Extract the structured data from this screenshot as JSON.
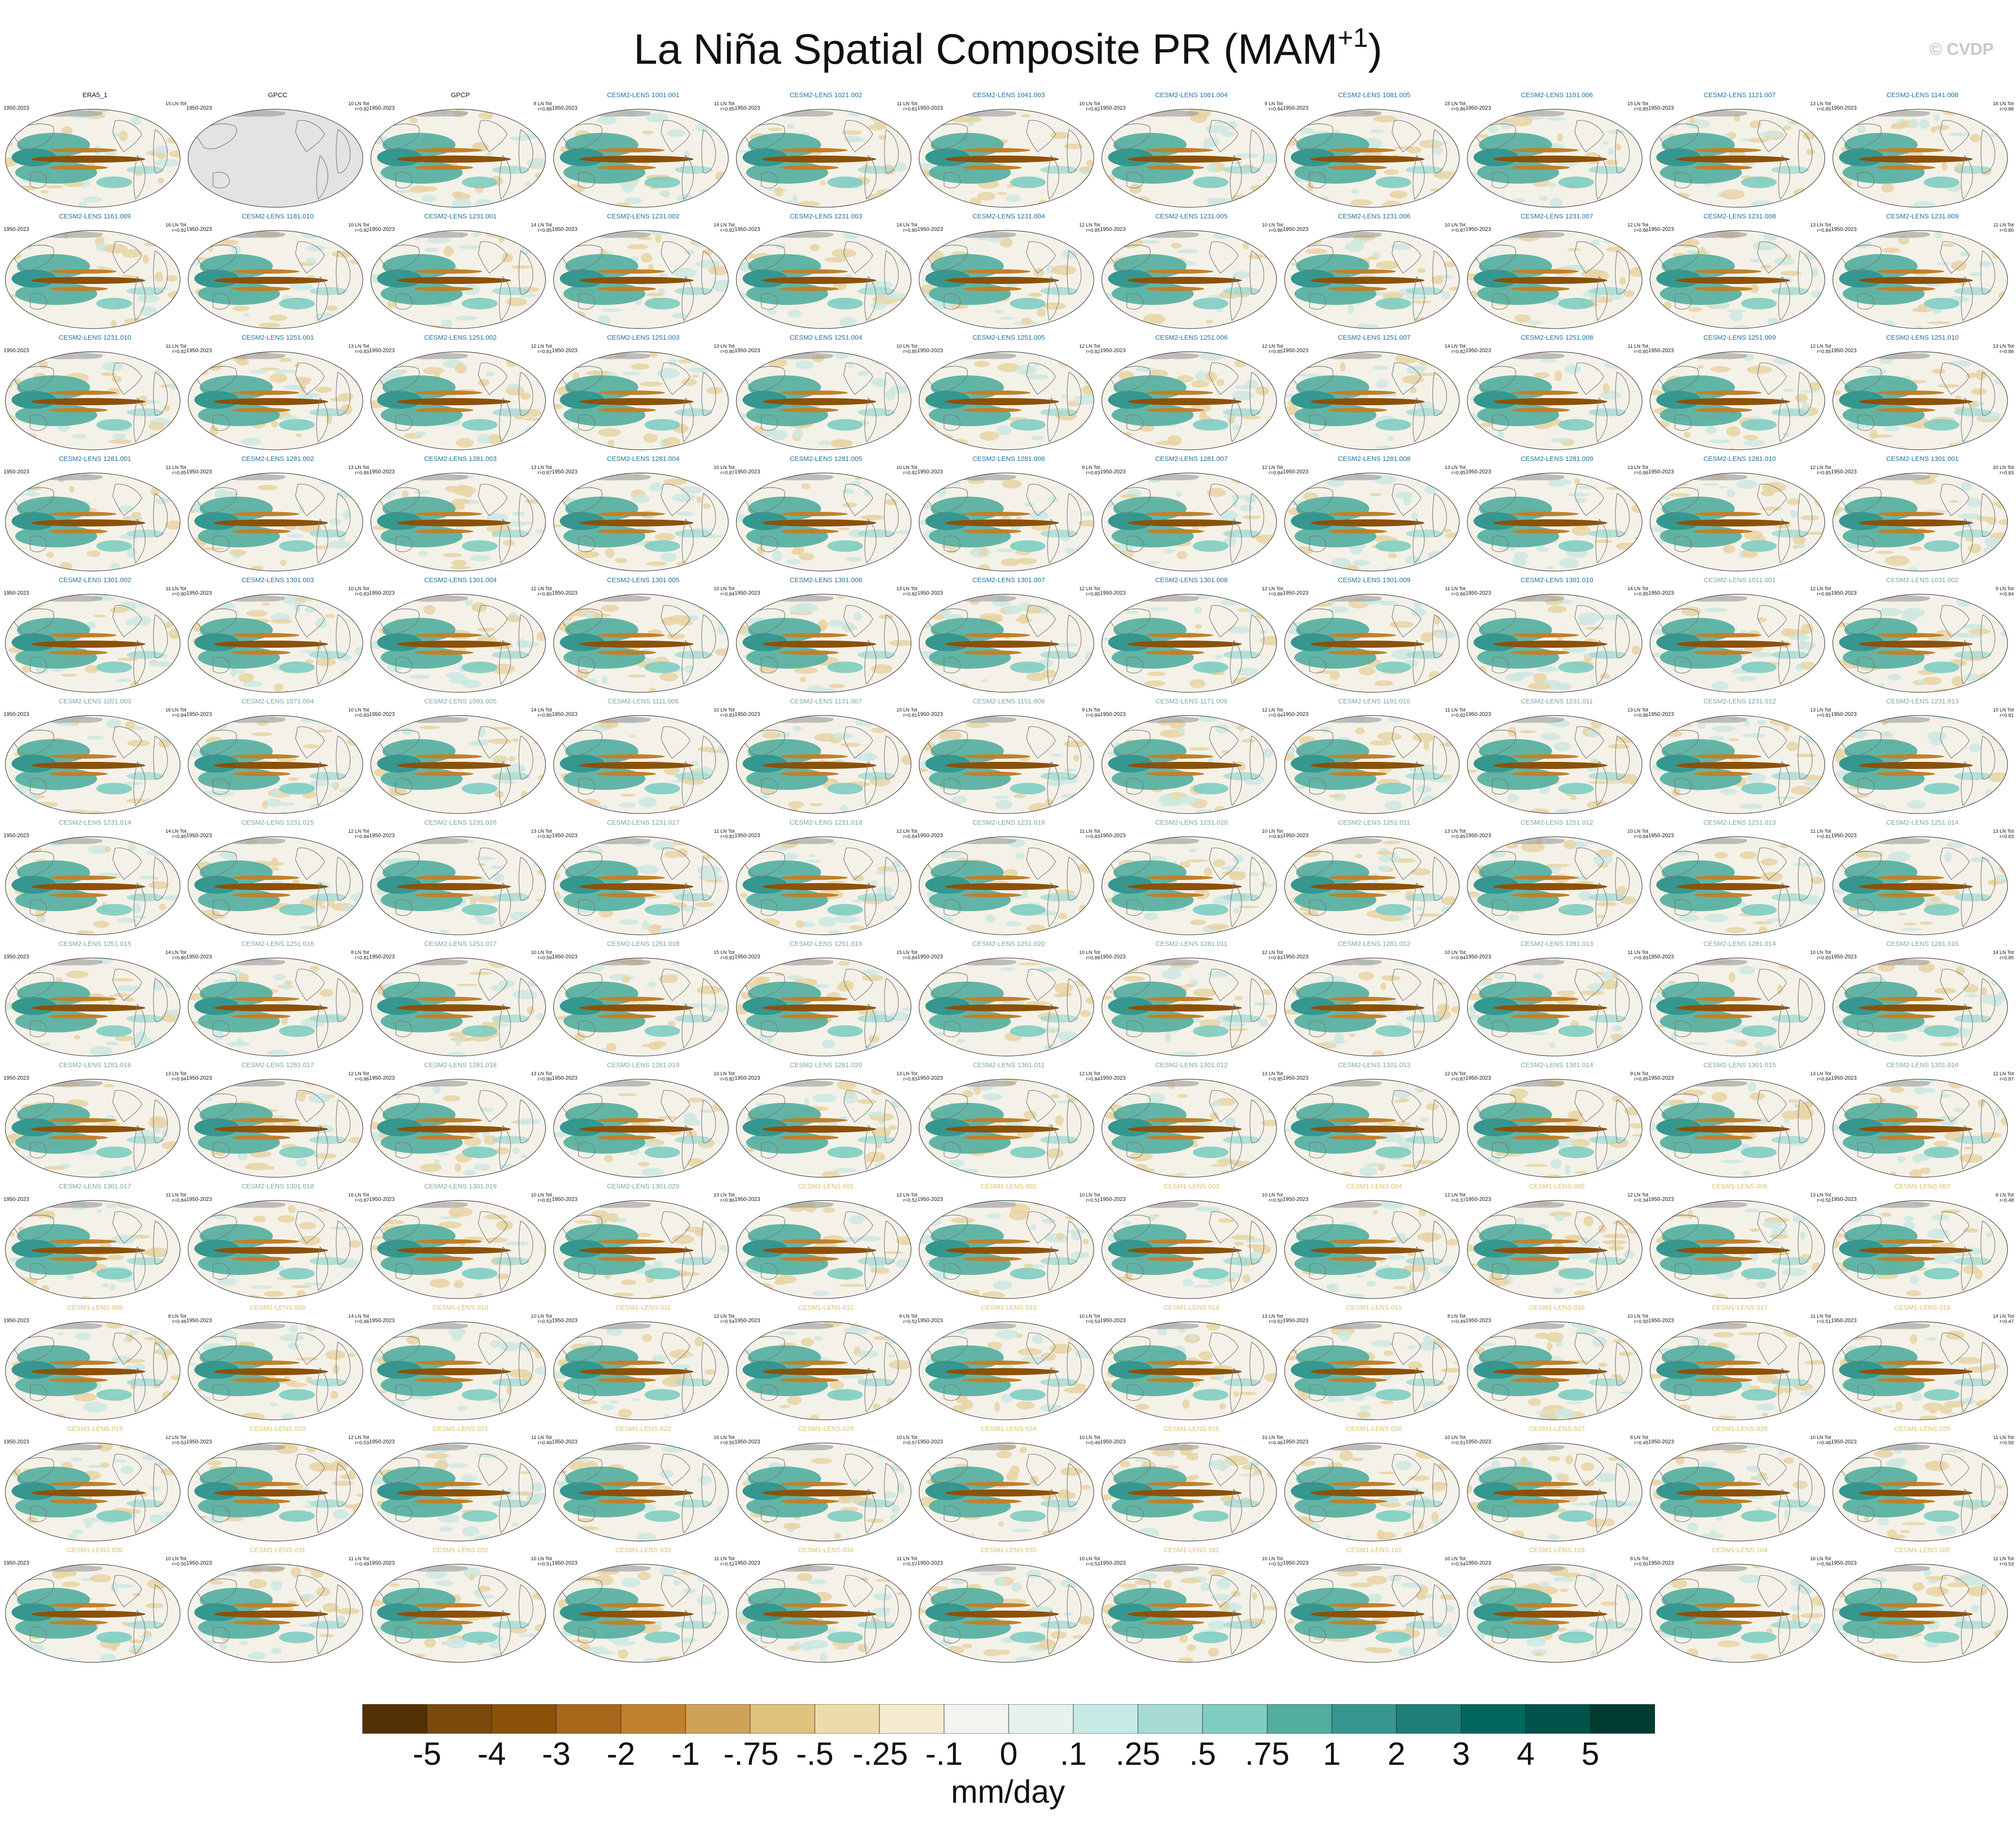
{
  "title": {
    "text": "La Niña Spatial Composite PR (MAM",
    "sup": "+1",
    "close": ")"
  },
  "watermark": "© CVDP",
  "period": "1950-2023",
  "colors": {
    "cesm2_smbb": "#1f6f9f",
    "cesm2_cmip6": "#7aa89a",
    "cesm1": "#d8c06a",
    "obs": "#111111"
  },
  "panels": [
    {
      "name": "ERA5_1",
      "group": "obs",
      "events": "15 LN Tot",
      "r": ""
    },
    {
      "name": "GPCC",
      "group": "obs",
      "events": "10 LN Tot",
      "r": "r=0.82"
    },
    {
      "name": "GPCP",
      "group": "obs",
      "events": "8 LN Tot",
      "r": "r=0.88"
    },
    {
      "name": "CESM2-LENS 1001.001",
      "group": "cesm2_smbb",
      "events": "11 LN Tot",
      "r": "r=0.85"
    },
    {
      "name": "CESM2-LENS 1021.002",
      "group": "cesm2_smbb",
      "events": "11 LN Tot",
      "r": "r=0.81"
    },
    {
      "name": "CESM2-LENS 1041.003",
      "group": "cesm2_smbb",
      "events": "10 LN Tot",
      "r": "r=0.82"
    },
    {
      "name": "CESM2-LENS 1061.004",
      "group": "cesm2_smbb",
      "events": "9 LN Tot",
      "r": "r=0.84"
    },
    {
      "name": "CESM2-LENS 1081.005",
      "group": "cesm2_smbb",
      "events": "15 LN Tot",
      "r": "r=0.86"
    },
    {
      "name": "CESM2-LENS 1101.006",
      "group": "cesm2_smbb",
      "events": "15 LN Tot",
      "r": "r=0.85"
    },
    {
      "name": "CESM2-LENS 1121.007",
      "group": "cesm2_smbb",
      "events": "13 LN Tot",
      "r": "r=0.85"
    },
    {
      "name": "CESM2-LENS 1141.008",
      "group": "cesm2_smbb",
      "events": "16 LN Tot",
      "r": "r=0.86"
    },
    {
      "name": "CESM2-LENS 1161.009",
      "group": "cesm2_smbb",
      "events": "16 LN Tot",
      "r": "r=0.82"
    },
    {
      "name": "CESM2-LENS 1181.010",
      "group": "cesm2_smbb",
      "events": "10 LN Tot",
      "r": "r=0.82"
    },
    {
      "name": "CESM2-LENS 1231.001",
      "group": "cesm2_smbb",
      "events": "14 LN Tot",
      "r": "r=0.85"
    },
    {
      "name": "CESM2-LENS 1231.002",
      "group": "cesm2_smbb",
      "events": "14 LN Tot",
      "r": "r=0.82"
    },
    {
      "name": "CESM2-LENS 1231.003",
      "group": "cesm2_smbb",
      "events": "14 LN Tot",
      "r": "r=0.80"
    },
    {
      "name": "CESM2-LENS 1231.004",
      "group": "cesm2_smbb",
      "events": "12 LN Tot",
      "r": "r=0.85"
    },
    {
      "name": "CESM2-LENS 1231.005",
      "group": "cesm2_smbb",
      "events": "10 LN Tot",
      "r": "r=0.86"
    },
    {
      "name": "CESM2-LENS 1231.006",
      "group": "cesm2_smbb",
      "events": "10 LN Tot",
      "r": "r=0.87"
    },
    {
      "name": "CESM2-LENS 1231.007",
      "group": "cesm2_smbb",
      "events": "12 LN Tot",
      "r": "r=0.86"
    },
    {
      "name": "CESM2-LENS 1231.008",
      "group": "cesm2_smbb",
      "events": "13 LN Tot",
      "r": "r=0.84"
    },
    {
      "name": "CESM2-LENS 1231.009",
      "group": "cesm2_smbb",
      "events": "11 LN Tot",
      "r": "r=0.80"
    },
    {
      "name": "CESM2-LENS 1231.010",
      "group": "cesm2_smbb",
      "events": "11 LN Tot",
      "r": "r=0.82"
    },
    {
      "name": "CESM2-LENS 1251.001",
      "group": "cesm2_smbb",
      "events": "13 LN Tot",
      "r": "r=0.83"
    },
    {
      "name": "CESM2-LENS 1251.002",
      "group": "cesm2_smbb",
      "events": "12 LN Tot",
      "r": "r=0.81"
    },
    {
      "name": "CESM2-LENS 1251.003",
      "group": "cesm2_smbb",
      "events": "13 LN Tot",
      "r": "r=0.80"
    },
    {
      "name": "CESM2-LENS 1251.004",
      "group": "cesm2_smbb",
      "events": "10 LN Tot",
      "r": "r=0.85"
    },
    {
      "name": "CESM2-LENS 1251.005",
      "group": "cesm2_smbb",
      "events": "12 LN Tot",
      "r": "r=0.82"
    },
    {
      "name": "CESM2-LENS 1251.006",
      "group": "cesm2_smbb",
      "events": "12 LN Tot",
      "r": "r=0.85"
    },
    {
      "name": "CESM2-LENS 1251.007",
      "group": "cesm2_smbb",
      "events": "14 LN Tot",
      "r": "r=0.82"
    },
    {
      "name": "CESM2-LENS 1251.008",
      "group": "cesm2_smbb",
      "events": "11 LN Tot",
      "r": "r=0.80"
    },
    {
      "name": "CESM2-LENS 1251.009",
      "group": "cesm2_smbb",
      "events": "12 LN Tot",
      "r": "r=0.85"
    },
    {
      "name": "CESM2-LENS 1251.010",
      "group": "cesm2_smbb",
      "events": "13 LN Tot",
      "r": "r=0.86"
    },
    {
      "name": "CESM2-LENS 1281.001",
      "group": "cesm2_smbb",
      "events": "11 LN Tot",
      "r": "r=0.85"
    },
    {
      "name": "CESM2-LENS 1281.002",
      "group": "cesm2_smbb",
      "events": "13 LN Tot",
      "r": "r=0.86"
    },
    {
      "name": "CESM2-LENS 1281.003",
      "group": "cesm2_smbb",
      "events": "13 LN Tot",
      "r": "r=0.87"
    },
    {
      "name": "CESM2-LENS 1281.004",
      "group": "cesm2_smbb",
      "events": "10 LN Tot",
      "r": "r=0.87"
    },
    {
      "name": "CESM2-LENS 1281.005",
      "group": "cesm2_smbb",
      "events": "10 LN Tot",
      "r": "r=0.82"
    },
    {
      "name": "CESM2-LENS 1281.006",
      "group": "cesm2_smbb",
      "events": "9 LN Tot",
      "r": "r=0.83"
    },
    {
      "name": "CESM2-LENS 1281.007",
      "group": "cesm2_smbb",
      "events": "12 LN Tot",
      "r": "r=0.84"
    },
    {
      "name": "CESM2-LENS 1281.008",
      "group": "cesm2_smbb",
      "events": "13 LN Tot",
      "r": "r=0.85"
    },
    {
      "name": "CESM2-LENS 1281.009",
      "group": "cesm2_smbb",
      "events": "13 LN Tot",
      "r": "r=0.86"
    },
    {
      "name": "CESM2-LENS 1281.010",
      "group": "cesm2_smbb",
      "events": "12 LN Tot",
      "r": "r=0.85"
    },
    {
      "name": "CESM2-LENS 1301.001",
      "group": "cesm2_smbb",
      "events": "10 LN Tot",
      "r": "r=0.83"
    },
    {
      "name": "CESM2-LENS 1301.002",
      "group": "cesm2_smbb",
      "events": "11 LN Tot",
      "r": "r=0.80"
    },
    {
      "name": "CESM2-LENS 1301.003",
      "group": "cesm2_smbb",
      "events": "10 LN Tot",
      "r": "r=0.83"
    },
    {
      "name": "CESM2-LENS 1301.004",
      "group": "cesm2_smbb",
      "events": "12 LN Tot",
      "r": "r=0.80"
    },
    {
      "name": "CESM2-LENS 1301.005",
      "group": "cesm2_smbb",
      "events": "10 LN Tot",
      "r": "r=0.84"
    },
    {
      "name": "CESM2-LENS 1301.006",
      "group": "cesm2_smbb",
      "events": "13 LN Tot",
      "r": "r=0.82"
    },
    {
      "name": "CESM2-LENS 1301.007",
      "group": "cesm2_smbb",
      "events": "12 LN Tot",
      "r": "r=0.85"
    },
    {
      "name": "CESM2-LENS 1301.008",
      "group": "cesm2_smbb",
      "events": "12 LN Tot",
      "r": "r=0.86"
    },
    {
      "name": "CESM2-LENS 1301.009",
      "group": "cesm2_smbb",
      "events": "11 LN Tot",
      "r": "r=0.86"
    },
    {
      "name": "CESM2-LENS 1301.010",
      "group": "cesm2_smbb",
      "events": "14 LN Tot",
      "r": "r=0.85"
    },
    {
      "name": "CESM2-LENS 1011.001",
      "group": "cesm2_cmip6",
      "events": "12 LN Tot",
      "r": "r=0.86"
    },
    {
      "name": "CESM2-LENS 1031.002",
      "group": "cesm2_cmip6",
      "events": "9 LN Tot",
      "r": "r=0.84"
    },
    {
      "name": "CESM2-LENS 1051.003",
      "group": "cesm2_cmip6",
      "events": "16 LN Tot",
      "r": "r=0.84"
    },
    {
      "name": "CESM2-LENS 1071.004",
      "group": "cesm2_cmip6",
      "events": "10 LN Tot",
      "r": "r=0.83"
    },
    {
      "name": "CESM2-LENS 1091.005",
      "group": "cesm2_cmip6",
      "events": "14 LN Tot",
      "r": "r=0.85"
    },
    {
      "name": "CESM2-LENS 1111.006",
      "group": "cesm2_cmip6",
      "events": "10 LN Tot",
      "r": "r=0.83"
    },
    {
      "name": "CESM2-LENS 1131.007",
      "group": "cesm2_cmip6",
      "events": "15 LN Tot",
      "r": "r=0.81"
    },
    {
      "name": "CESM2-LENS 1151.008",
      "group": "cesm2_cmip6",
      "events": "9 LN Tot",
      "r": "r=0.84"
    },
    {
      "name": "CESM2-LENS 1171.009",
      "group": "cesm2_cmip6",
      "events": "12 LN Tot",
      "r": "r=0.84"
    },
    {
      "name": "CESM2-LENS 1191.010",
      "group": "cesm2_cmip6",
      "events": "11 LN Tot",
      "r": "r=0.82"
    },
    {
      "name": "CESM2-LENS 1231.011",
      "group": "cesm2_cmip6",
      "events": "13 LN Tot",
      "r": "r=0.86"
    },
    {
      "name": "CESM2-LENS 1231.012",
      "group": "cesm2_cmip6",
      "events": "13 LN Tot",
      "r": "r=0.81"
    },
    {
      "name": "CESM2-LENS 1231.013",
      "group": "cesm2_cmip6",
      "events": "10 LN Tot",
      "r": "r=0.81"
    },
    {
      "name": "CESM2-LENS 1231.014",
      "group": "cesm2_cmip6",
      "events": "14 LN Tot",
      "r": "r=0.85"
    },
    {
      "name": "CESM2-LENS 1231.015",
      "group": "cesm2_cmip6",
      "events": "12 LN Tot",
      "r": "r=0.84"
    },
    {
      "name": "CESM2-LENS 1231.016",
      "group": "cesm2_cmip6",
      "events": "13 LN Tot",
      "r": "r=0.82"
    },
    {
      "name": "CESM2-LENS 1231.017",
      "group": "cesm2_cmip6",
      "events": "11 LN Tot",
      "r": "r=0.82"
    },
    {
      "name": "CESM2-LENS 1231.018",
      "group": "cesm2_cmip6",
      "events": "12 LN Tot",
      "r": "r=0.84"
    },
    {
      "name": "CESM2-LENS 1231.019",
      "group": "cesm2_cmip6",
      "events": "11 LN Tot",
      "r": "r=0.83"
    },
    {
      "name": "CESM2-LENS 1231.020",
      "group": "cesm2_cmip6",
      "events": "10 LN Tot",
      "r": "r=0.83"
    },
    {
      "name": "CESM2-LENS 1251.011",
      "group": "cesm2_cmip6",
      "events": "13 LN Tot",
      "r": "r=0.85"
    },
    {
      "name": "CESM2-LENS 1251.012",
      "group": "cesm2_cmip6",
      "events": "10 LN Tot",
      "r": "r=0.84"
    },
    {
      "name": "CESM2-LENS 1251.013",
      "group": "cesm2_cmip6",
      "events": "11 LN Tot",
      "r": "r=0.81"
    },
    {
      "name": "CESM2-LENS 1251.014",
      "group": "cesm2_cmip6",
      "events": "13 LN Tot",
      "r": "r=0.83"
    },
    {
      "name": "CESM2-LENS 1251.015",
      "group": "cesm2_cmip6",
      "events": "14 LN Tot",
      "r": "r=0.80"
    },
    {
      "name": "CESM2-LENS 1251.016",
      "group": "cesm2_cmip6",
      "events": "8 LN Tot",
      "r": "r=0.81"
    },
    {
      "name": "CESM2-LENS 1251.017",
      "group": "cesm2_cmip6",
      "events": "10 LN Tot",
      "r": "r=0.59"
    },
    {
      "name": "CESM2-LENS 1251.018",
      "group": "cesm2_cmip6",
      "events": "15 LN Tot",
      "r": "r=0.82"
    },
    {
      "name": "CESM2-LENS 1251.019",
      "group": "cesm2_cmip6",
      "events": "15 LN Tot",
      "r": "r=0.84"
    },
    {
      "name": "CESM2-LENS 1251.020",
      "group": "cesm2_cmip6",
      "events": "10 LN Tot",
      "r": "r=0.88"
    },
    {
      "name": "CESM2-LENS 1281.011",
      "group": "cesm2_cmip6",
      "events": "12 LN Tot",
      "r": "r=0.83"
    },
    {
      "name": "CESM2-LENS 1281.012",
      "group": "cesm2_cmip6",
      "events": "10 LN Tot",
      "r": "r=0.84"
    },
    {
      "name": "CESM2-LENS 1281.013",
      "group": "cesm2_cmip6",
      "events": "11 LN Tot",
      "r": "r=0.83"
    },
    {
      "name": "CESM2-LENS 1281.014",
      "group": "cesm2_cmip6",
      "events": "10 LN Tot",
      "r": "r=0.83"
    },
    {
      "name": "CESM2-LENS 1281.015",
      "group": "cesm2_cmip6",
      "events": "14 LN Tot",
      "r": "r=0.85"
    },
    {
      "name": "CESM2-LENS 1281.016",
      "group": "cesm2_cmip6",
      "events": "13 LN Tot",
      "r": "r=0.84"
    },
    {
      "name": "CESM2-LENS 1281.017",
      "group": "cesm2_cmip6",
      "events": "12 LN Tot",
      "r": "r=0.86"
    },
    {
      "name": "CESM2-LENS 1281.018",
      "group": "cesm2_cmip6",
      "events": "13 LN Tot",
      "r": "r=0.86"
    },
    {
      "name": "CESM2-LENS 1281.019",
      "group": "cesm2_cmip6",
      "events": "10 LN Tot",
      "r": "r=0.82"
    },
    {
      "name": "CESM2-LENS 1281.020",
      "group": "cesm2_cmip6",
      "events": "13 LN Tot",
      "r": "r=0.83"
    },
    {
      "name": "CESM2-LENS 1301.011",
      "group": "cesm2_cmip6",
      "events": "12 LN Tot",
      "r": "r=0.84"
    },
    {
      "name": "CESM2-LENS 1301.012",
      "group": "cesm2_cmip6",
      "events": "13 LN Tot",
      "r": "r=0.85"
    },
    {
      "name": "CESM2-LENS 1301.013",
      "group": "cesm2_cmip6",
      "events": "12 LN Tot",
      "r": "r=0.87"
    },
    {
      "name": "CESM2-LENS 1301.014",
      "group": "cesm2_cmip6",
      "events": "9 LN Tot",
      "r": "r=0.85"
    },
    {
      "name": "CESM2-LENS 1301.015",
      "group": "cesm2_cmip6",
      "events": "13 LN Tot",
      "r": "r=0.84"
    },
    {
      "name": "CESM2-LENS 1301.016",
      "group": "cesm2_cmip6",
      "events": "12 LN Tot",
      "r": "r=0.87"
    },
    {
      "name": "CESM2-LENS 1301.017",
      "group": "cesm2_cmip6",
      "events": "11 LN Tot",
      "r": "r=0.84"
    },
    {
      "name": "CESM2-LENS 1301.018",
      "group": "cesm2_cmip6",
      "events": "16 LN Tot",
      "r": "r=0.87"
    },
    {
      "name": "CESM2-LENS 1301.019",
      "group": "cesm2_cmip6",
      "events": "10 LN Tot",
      "r": "r=0.81"
    },
    {
      "name": "CESM2-LENS 1301.020",
      "group": "cesm2_cmip6",
      "events": "13 LN Tot",
      "r": "r=0.86"
    },
    {
      "name": "CESM1-LENS 001",
      "group": "cesm1",
      "events": "12 LN Tot",
      "r": "r=0.52"
    },
    {
      "name": "CESM1-LENS 002",
      "group": "cesm1",
      "events": "10 LN Tot",
      "r": "r=0.51"
    },
    {
      "name": "CESM1-LENS 003",
      "group": "cesm1",
      "events": "10 LN Tot",
      "r": "r=0.50"
    },
    {
      "name": "CESM1-LENS 004",
      "group": "cesm1",
      "events": "12 LN Tot",
      "r": "r=0.37"
    },
    {
      "name": "CESM1-LENS 005",
      "group": "cesm1",
      "events": "12 LN Tot",
      "r": "r=0.34"
    },
    {
      "name": "CESM1-LENS 006",
      "group": "cesm1",
      "events": "13 LN Tot",
      "r": "r=0.52"
    },
    {
      "name": "CESM1-LENS 007",
      "group": "cesm1",
      "events": "8 LN Tot",
      "r": "r=0.48"
    },
    {
      "name": "CESM1-LENS 008",
      "group": "cesm1",
      "events": "8 LN Tot",
      "r": "r=0.48"
    },
    {
      "name": "CESM1-LENS 009",
      "group": "cesm1",
      "events": "14 LN Tot",
      "r": "r=0.46"
    },
    {
      "name": "CESM1-LENS 010",
      "group": "cesm1",
      "events": "10 LN Tot",
      "r": "r=0.53"
    },
    {
      "name": "CESM1-LENS 011",
      "group": "cesm1",
      "events": "12 LN Tot",
      "r": "r=0.54"
    },
    {
      "name": "CESM1-LENS 012",
      "group": "cesm1",
      "events": "9 LN Tot",
      "r": "r=0.52"
    },
    {
      "name": "CESM1-LENS 013",
      "group": "cesm1",
      "events": "10 LN Tot",
      "r": "r=0.53"
    },
    {
      "name": "CESM1-LENS 014",
      "group": "cesm1",
      "events": "13 LN Tot",
      "r": "r=0.52"
    },
    {
      "name": "CESM1-LENS 015",
      "group": "cesm1",
      "events": "8 LN Tot",
      "r": "r=0.49"
    },
    {
      "name": "CESM1-LENS 016",
      "group": "cesm1",
      "events": "10 LN Tot",
      "r": "r=0.50"
    },
    {
      "name": "CESM1-LENS 017",
      "group": "cesm1",
      "events": "11 LN Tot",
      "r": "r=0.51"
    },
    {
      "name": "CESM1-LENS 018",
      "group": "cesm1",
      "events": "14 LN Tot",
      "r": "r=0.47"
    },
    {
      "name": "CESM1-LENS 019",
      "group": "cesm1",
      "events": "12 LN Tot",
      "r": "r=0.53"
    },
    {
      "name": "CESM1-LENS 020",
      "group": "cesm1",
      "events": "12 LN Tot",
      "r": "r=0.53"
    },
    {
      "name": "CESM1-LENS 021",
      "group": "cesm1",
      "events": "11 LN Tot",
      "r": "r=0.49"
    },
    {
      "name": "CESM1-LENS 022",
      "group": "cesm1",
      "events": "10 LN Tot",
      "r": "r=0.55"
    },
    {
      "name": "CESM1-LENS 023",
      "group": "cesm1",
      "events": "10 LN Tot",
      "r": "r=0.57"
    },
    {
      "name": "CESM1-LENS 024",
      "group": "cesm1",
      "events": "10 LN Tot",
      "r": "r=0.49"
    },
    {
      "name": "CESM1-LENS 025",
      "group": "cesm1",
      "events": "10 LN Tot",
      "r": "r=0.46"
    },
    {
      "name": "CESM1-LENS 026",
      "group": "cesm1",
      "events": "10 LN Tot",
      "r": "r=0.51"
    },
    {
      "name": "CESM1-LENS 027",
      "group": "cesm1",
      "events": "8 LN Tot",
      "r": "r=0.45"
    },
    {
      "name": "CESM1-LENS 028",
      "group": "cesm1",
      "events": "10 LN Tot",
      "r": "r=0.48"
    },
    {
      "name": "CESM1-LENS 029",
      "group": "cesm1",
      "events": "11 LN Tot",
      "r": "r=0.50"
    },
    {
      "name": "CESM1-LENS 030",
      "group": "cesm1",
      "events": "10 LN Tot",
      "r": "r=0.50"
    },
    {
      "name": "CESM1-LENS 031",
      "group": "cesm1",
      "events": "11 LN Tot",
      "r": "r=0.49"
    },
    {
      "name": "CESM1-LENS 032",
      "group": "cesm1",
      "events": "10 LN Tot",
      "r": "r=0.51"
    },
    {
      "name": "CESM1-LENS 033",
      "group": "cesm1",
      "events": "11 LN Tot",
      "r": "r=0.52"
    },
    {
      "name": "CESM1-LENS 034",
      "group": "cesm1",
      "events": "11 LN Tot",
      "r": "r=0.57"
    },
    {
      "name": "CESM1-LENS 035",
      "group": "cesm1",
      "events": "10 LN Tot",
      "r": "r=0.53"
    },
    {
      "name": "CESM1-LENS 101",
      "group": "cesm1",
      "events": "10 LN Tot",
      "r": "r=0.52"
    },
    {
      "name": "CESM1-LENS 102",
      "group": "cesm1",
      "events": "10 LN Tot",
      "r": "r=0.54"
    },
    {
      "name": "CESM1-LENS 103",
      "group": "cesm1",
      "events": "9 LN Tot",
      "r": "r=0.50"
    },
    {
      "name": "CESM1-LENS 104",
      "group": "cesm1",
      "events": "16 LN Tot",
      "r": "r=0.56"
    },
    {
      "name": "CESM1-LENS 105",
      "group": "cesm1",
      "events": "11 LN Tot",
      "r": "r=0.53"
    }
  ],
  "colorbar": {
    "colors": [
      "#543005",
      "#7a4a0d",
      "#8c5109",
      "#a6691c",
      "#bf812d",
      "#cfa25a",
      "#dfc27d",
      "#eddcab",
      "#f4ebcf",
      "#f5f3ee",
      "#e5f2ef",
      "#c7eae5",
      "#a5dbd2",
      "#80cdc1",
      "#52ae9f",
      "#35978f",
      "#1d7f77",
      "#01665e",
      "#01524a",
      "#003c30"
    ],
    "labels": [
      "-5",
      "-4",
      "-3",
      "-2",
      "-1",
      "-.75",
      "-.5",
      "-.25",
      "-.1",
      "0",
      ".1",
      ".25",
      ".5",
      ".75",
      "1",
      "2",
      "3",
      "4",
      "5"
    ],
    "units": "mm/day"
  }
}
